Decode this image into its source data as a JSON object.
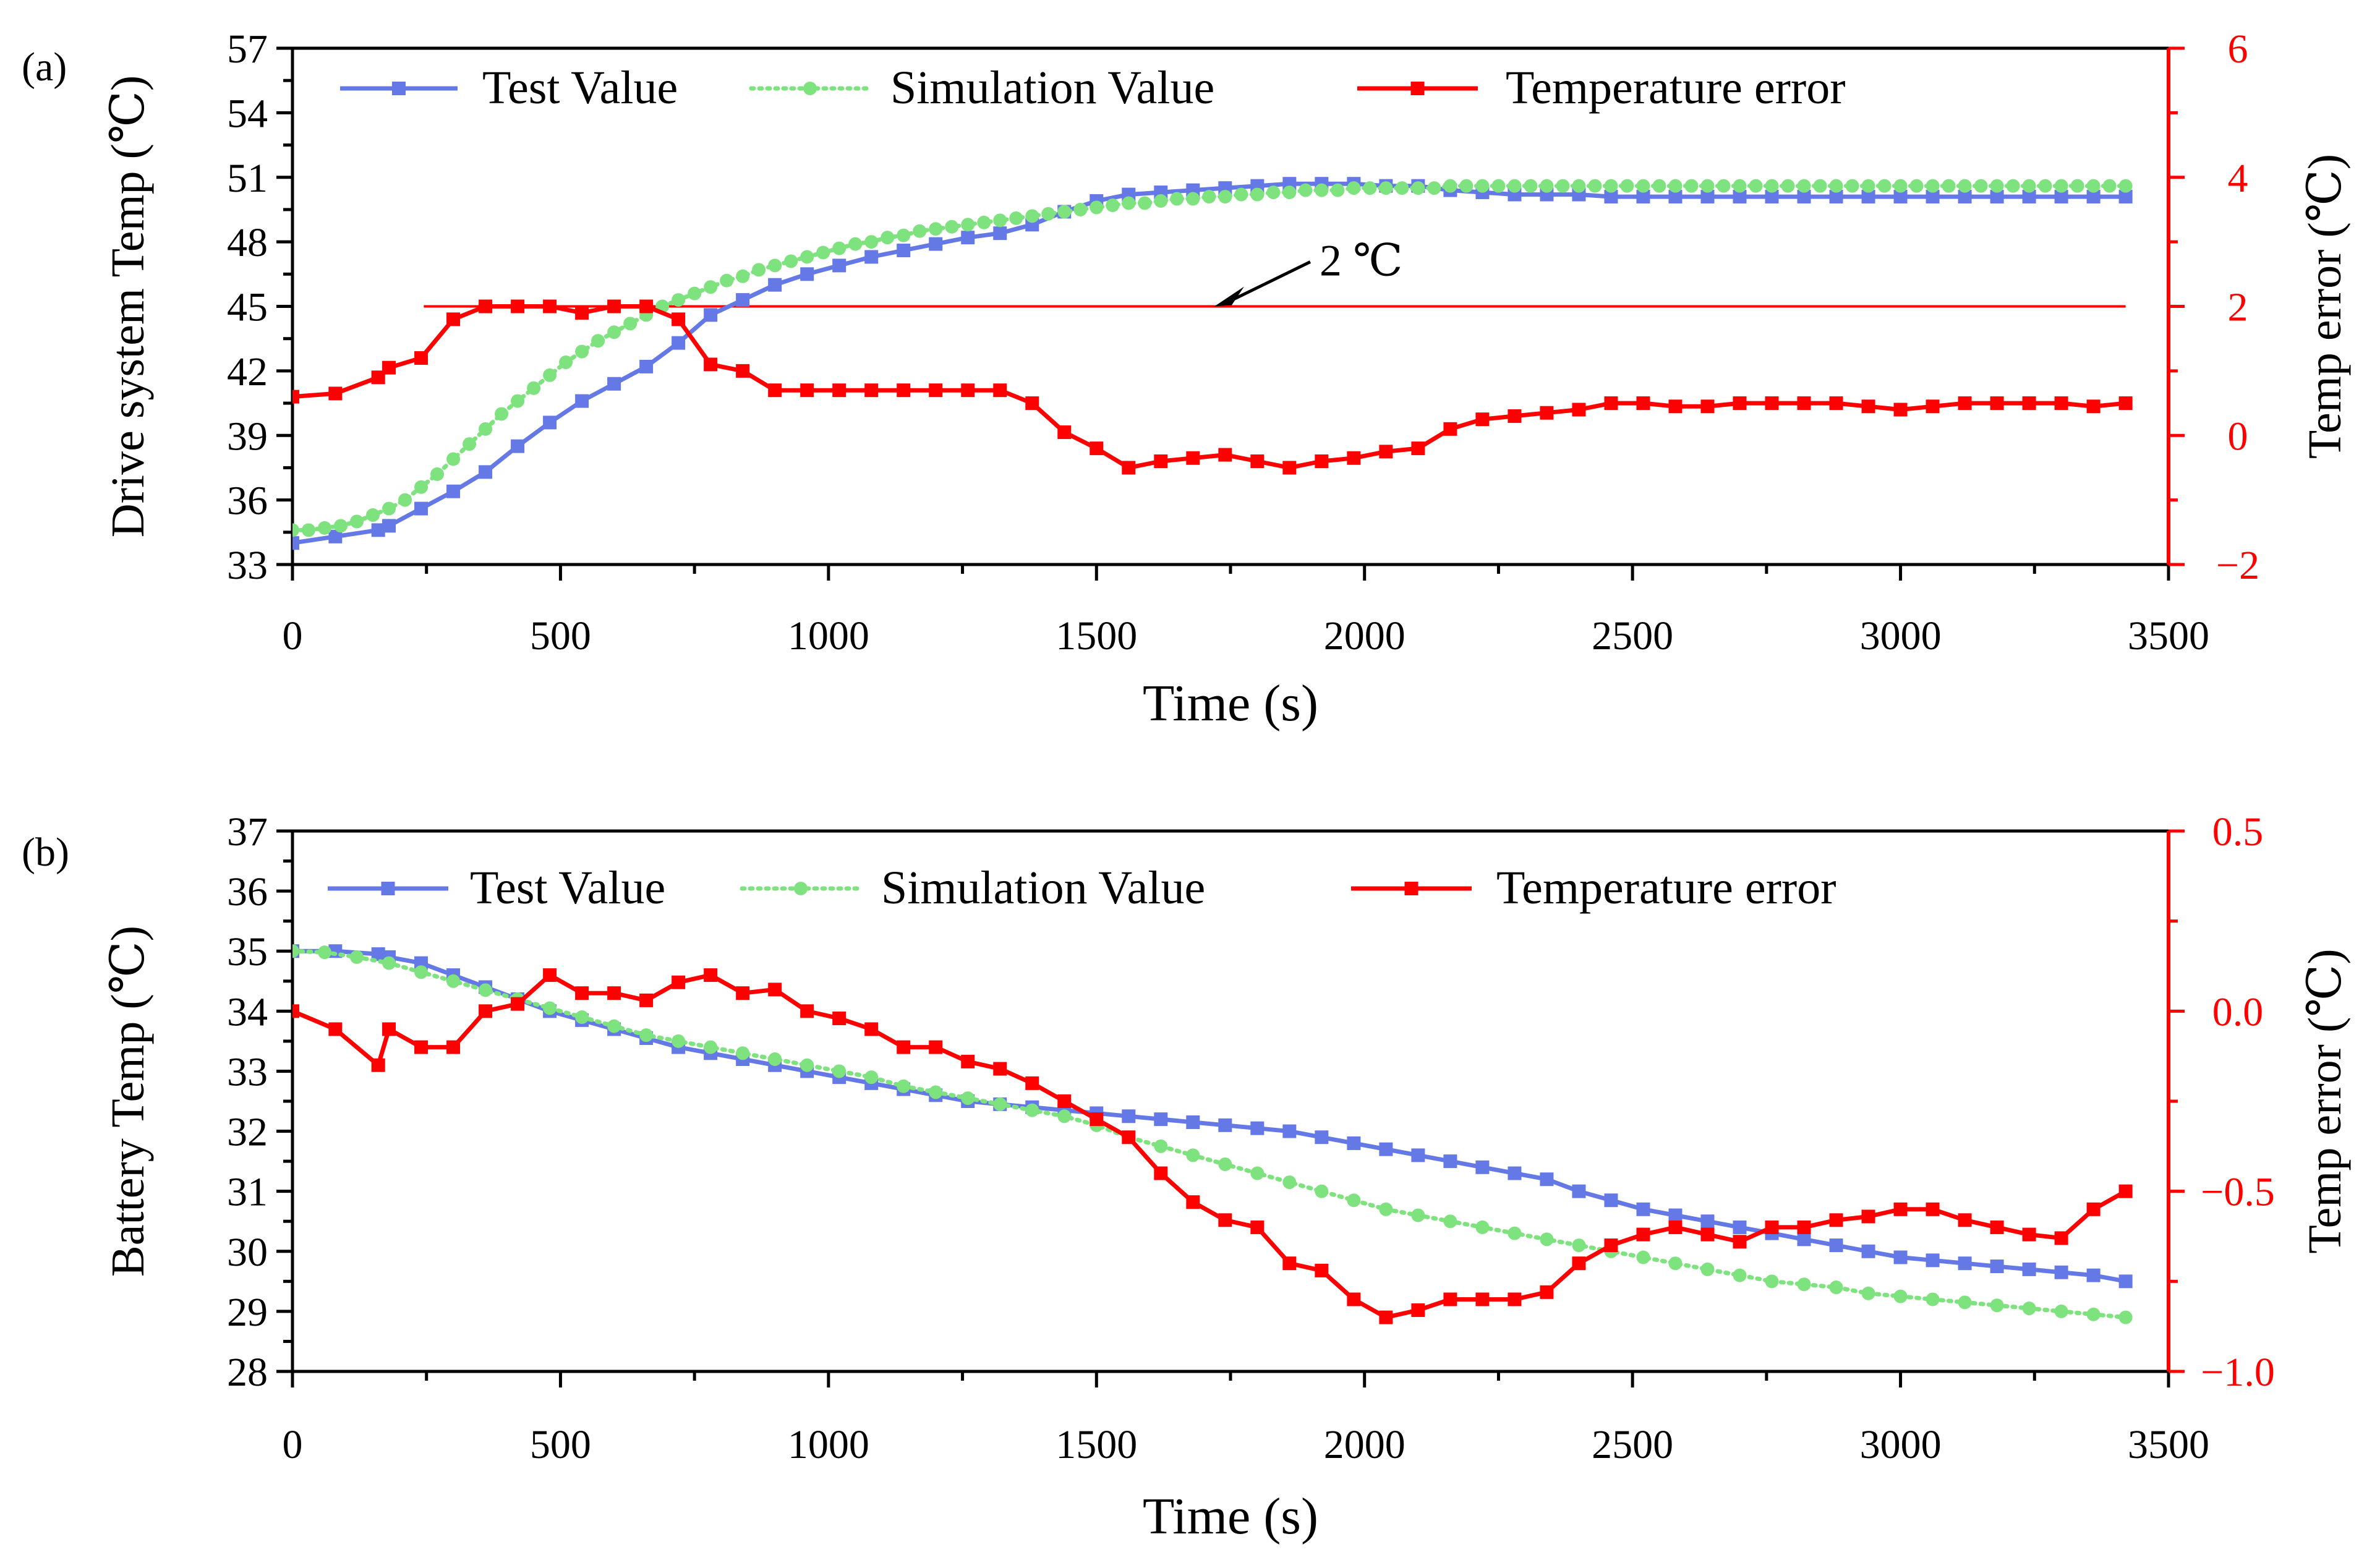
{
  "chart_data": [
    {
      "panel_label": "(a)",
      "type": "line",
      "xlabel": "Time (s)",
      "ylabel": "Drive system Temp (℃)",
      "ylabel_right": "Temp error (℃)",
      "xlim": [
        0,
        3500
      ],
      "ylim": [
        33,
        57
      ],
      "ylim_right": [
        -2,
        6
      ],
      "x_ticks": [
        0,
        500,
        1000,
        1500,
        2000,
        2500,
        3000,
        3500
      ],
      "y_ticks": [
        33,
        36,
        39,
        42,
        45,
        48,
        51,
        54,
        57
      ],
      "y_ticks_right": [
        -2,
        0,
        2,
        4,
        6
      ],
      "legend_position": "top",
      "grid": false,
      "annotation": {
        "text": "2 ℃",
        "line_value_right": 2,
        "line_x": [
          245,
          3420
        ],
        "arrow_target_x": 1720
      },
      "series": [
        {
          "name": "Test Value",
          "axis": "left",
          "color": "#6479e6",
          "style": "solid",
          "marker": "square",
          "x": [
            0,
            80,
            160,
            180,
            240,
            300,
            360,
            420,
            480,
            540,
            600,
            660,
            720,
            780,
            840,
            900,
            960,
            1020,
            1080,
            1140,
            1200,
            1260,
            1320,
            1380,
            1440,
            1500,
            1560,
            1620,
            1680,
            1740,
            1800,
            1860,
            1920,
            1980,
            2040,
            2100,
            2160,
            2220,
            2280,
            2340,
            2400,
            2460,
            2520,
            2580,
            2640,
            2700,
            2760,
            2820,
            2880,
            2940,
            3000,
            3060,
            3120,
            3180,
            3240,
            3300,
            3360,
            3420
          ],
          "y": [
            34.0,
            34.3,
            34.6,
            34.8,
            35.6,
            36.4,
            37.3,
            38.5,
            39.6,
            40.6,
            41.4,
            42.2,
            43.3,
            44.6,
            45.3,
            46.0,
            46.5,
            46.9,
            47.3,
            47.6,
            47.9,
            48.2,
            48.4,
            48.8,
            49.4,
            49.9,
            50.2,
            50.3,
            50.4,
            50.5,
            50.6,
            50.7,
            50.7,
            50.7,
            50.6,
            50.6,
            50.4,
            50.3,
            50.2,
            50.2,
            50.2,
            50.1,
            50.1,
            50.1,
            50.1,
            50.1,
            50.1,
            50.1,
            50.1,
            50.1,
            50.1,
            50.1,
            50.1,
            50.1,
            50.1,
            50.1,
            50.1,
            50.1
          ]
        },
        {
          "name": "Simulation Value",
          "axis": "left",
          "color": "#7ee27e",
          "style": "dotted",
          "marker": "circle",
          "x": [
            0,
            30,
            60,
            90,
            120,
            150,
            180,
            210,
            240,
            270,
            300,
            330,
            360,
            390,
            420,
            450,
            480,
            510,
            540,
            570,
            600,
            630,
            660,
            690,
            720,
            750,
            780,
            810,
            840,
            870,
            900,
            930,
            960,
            990,
            1020,
            1050,
            1080,
            1110,
            1140,
            1170,
            1200,
            1230,
            1260,
            1290,
            1320,
            1350,
            1380,
            1410,
            1440,
            1470,
            1500,
            1530,
            1560,
            1590,
            1620,
            1650,
            1680,
            1710,
            1740,
            1770,
            1800,
            1830,
            1860,
            1890,
            1920,
            1950,
            1980,
            2010,
            2040,
            2070,
            2100,
            2130,
            2160,
            2190,
            2220,
            2250,
            2280,
            2310,
            2340,
            2370,
            2400,
            2430,
            2460,
            2490,
            2520,
            2550,
            2580,
            2610,
            2640,
            2670,
            2700,
            2730,
            2760,
            2790,
            2820,
            2850,
            2880,
            2910,
            2940,
            2970,
            3000,
            3030,
            3060,
            3090,
            3120,
            3150,
            3180,
            3210,
            3240,
            3270,
            3300,
            3330,
            3360,
            3390,
            3420
          ],
          "y": [
            34.6,
            34.6,
            34.7,
            34.8,
            35.0,
            35.3,
            35.6,
            36.0,
            36.6,
            37.2,
            37.9,
            38.6,
            39.3,
            40.0,
            40.6,
            41.2,
            41.8,
            42.4,
            42.9,
            43.4,
            43.8,
            44.2,
            44.6,
            45.0,
            45.3,
            45.6,
            45.9,
            46.2,
            46.4,
            46.7,
            46.9,
            47.1,
            47.3,
            47.5,
            47.7,
            47.9,
            48.0,
            48.2,
            48.3,
            48.5,
            48.6,
            48.7,
            48.8,
            48.9,
            49.0,
            49.1,
            49.2,
            49.3,
            49.4,
            49.5,
            49.6,
            49.7,
            49.8,
            49.8,
            49.9,
            50.0,
            50.0,
            50.1,
            50.1,
            50.2,
            50.2,
            50.3,
            50.3,
            50.4,
            50.4,
            50.4,
            50.5,
            50.5,
            50.5,
            50.5,
            50.5,
            50.5,
            50.6,
            50.6,
            50.6,
            50.6,
            50.6,
            50.6,
            50.6,
            50.6,
            50.6,
            50.6,
            50.6,
            50.6,
            50.6,
            50.6,
            50.6,
            50.6,
            50.6,
            50.6,
            50.6,
            50.6,
            50.6,
            50.6,
            50.6,
            50.6,
            50.6,
            50.6,
            50.6,
            50.6,
            50.6,
            50.6,
            50.6,
            50.6,
            50.6,
            50.6,
            50.6,
            50.6,
            50.6,
            50.6,
            50.6,
            50.6,
            50.6,
            50.6,
            50.6
          ]
        },
        {
          "name": "Temperature error",
          "axis": "right",
          "color": "#ff0000",
          "style": "solid",
          "marker": "square",
          "x": [
            0,
            80,
            160,
            180,
            240,
            300,
            360,
            420,
            480,
            540,
            600,
            660,
            720,
            780,
            840,
            900,
            960,
            1020,
            1080,
            1140,
            1200,
            1260,
            1320,
            1380,
            1440,
            1500,
            1560,
            1620,
            1680,
            1740,
            1800,
            1860,
            1920,
            1980,
            2040,
            2100,
            2160,
            2220,
            2280,
            2340,
            2400,
            2460,
            2520,
            2580,
            2640,
            2700,
            2760,
            2820,
            2880,
            2940,
            3000,
            3060,
            3120,
            3180,
            3240,
            3300,
            3360,
            3420
          ],
          "y": [
            0.6,
            0.65,
            0.9,
            1.05,
            1.2,
            1.8,
            2.0,
            2.0,
            2.0,
            1.9,
            2.0,
            2.0,
            1.8,
            1.1,
            1.0,
            0.7,
            0.7,
            0.7,
            0.7,
            0.7,
            0.7,
            0.7,
            0.7,
            0.5,
            0.05,
            -0.2,
            -0.5,
            -0.4,
            -0.35,
            -0.3,
            -0.4,
            -0.5,
            -0.4,
            -0.35,
            -0.25,
            -0.2,
            0.1,
            0.25,
            0.3,
            0.35,
            0.4,
            0.5,
            0.5,
            0.45,
            0.45,
            0.5,
            0.5,
            0.5,
            0.5,
            0.45,
            0.4,
            0.45,
            0.5,
            0.5,
            0.5,
            0.5,
            0.45,
            0.5
          ]
        }
      ]
    },
    {
      "panel_label": "(b)",
      "type": "line",
      "xlabel": "Time (s)",
      "ylabel": "Battery Temp (℃)",
      "ylabel_right": "Temp error (℃)",
      "xlim": [
        0,
        3500
      ],
      "ylim": [
        28,
        37
      ],
      "ylim_right": [
        -1.0,
        0.5
      ],
      "x_ticks": [
        0,
        500,
        1000,
        1500,
        2000,
        2500,
        3000,
        3500
      ],
      "y_ticks": [
        28,
        29,
        30,
        31,
        32,
        33,
        34,
        35,
        36,
        37
      ],
      "y_ticks_right": [
        "-1.0",
        "-0.5",
        "0.0",
        "0.5"
      ],
      "y_ticks_right_values": [
        -1.0,
        -0.5,
        0.0,
        0.5
      ],
      "legend_position": "top",
      "grid": false,
      "series": [
        {
          "name": "Test Value",
          "axis": "left",
          "color": "#6479e6",
          "style": "solid",
          "marker": "square",
          "x": [
            0,
            80,
            160,
            180,
            240,
            300,
            360,
            420,
            480,
            540,
            600,
            660,
            720,
            780,
            840,
            900,
            960,
            1020,
            1080,
            1140,
            1200,
            1260,
            1320,
            1380,
            1440,
            1500,
            1560,
            1620,
            1680,
            1740,
            1800,
            1860,
            1920,
            1980,
            2040,
            2100,
            2160,
            2220,
            2280,
            2340,
            2400,
            2460,
            2520,
            2580,
            2640,
            2700,
            2760,
            2820,
            2880,
            2940,
            3000,
            3060,
            3120,
            3180,
            3240,
            3300,
            3360,
            3420
          ],
          "y": [
            35.0,
            35.0,
            34.95,
            34.9,
            34.8,
            34.6,
            34.4,
            34.2,
            34.0,
            33.85,
            33.7,
            33.55,
            33.4,
            33.3,
            33.2,
            33.1,
            33.0,
            32.9,
            32.8,
            32.7,
            32.6,
            32.5,
            32.45,
            32.4,
            32.35,
            32.3,
            32.25,
            32.2,
            32.15,
            32.1,
            32.05,
            32.0,
            31.9,
            31.8,
            31.7,
            31.6,
            31.5,
            31.4,
            31.3,
            31.2,
            31.0,
            30.85,
            30.7,
            30.6,
            30.5,
            30.4,
            30.3,
            30.2,
            30.1,
            30.0,
            29.9,
            29.85,
            29.8,
            29.75,
            29.7,
            29.65,
            29.6,
            29.5
          ]
        },
        {
          "name": "Simulation Value",
          "axis": "left",
          "color": "#7ee27e",
          "style": "dotted",
          "marker": "circle",
          "x": [
            0,
            60,
            120,
            180,
            240,
            300,
            360,
            420,
            480,
            540,
            600,
            660,
            720,
            780,
            840,
            900,
            960,
            1020,
            1080,
            1140,
            1200,
            1260,
            1320,
            1380,
            1440,
            1500,
            1560,
            1620,
            1680,
            1740,
            1800,
            1860,
            1920,
            1980,
            2040,
            2100,
            2160,
            2220,
            2280,
            2340,
            2400,
            2460,
            2520,
            2580,
            2640,
            2700,
            2760,
            2820,
            2880,
            2940,
            3000,
            3060,
            3120,
            3180,
            3240,
            3300,
            3360,
            3420
          ],
          "y": [
            35.0,
            34.98,
            34.9,
            34.8,
            34.65,
            34.5,
            34.35,
            34.2,
            34.05,
            33.9,
            33.75,
            33.6,
            33.5,
            33.4,
            33.3,
            33.2,
            33.1,
            33.0,
            32.9,
            32.75,
            32.65,
            32.55,
            32.45,
            32.35,
            32.25,
            32.1,
            31.9,
            31.75,
            31.6,
            31.45,
            31.3,
            31.15,
            31.0,
            30.85,
            30.7,
            30.6,
            30.5,
            30.4,
            30.3,
            30.2,
            30.1,
            30.0,
            29.9,
            29.8,
            29.7,
            29.6,
            29.5,
            29.45,
            29.4,
            29.3,
            29.25,
            29.2,
            29.15,
            29.1,
            29.05,
            29.0,
            28.95,
            28.9
          ]
        },
        {
          "name": "Temperature error",
          "axis": "right",
          "color": "#ff0000",
          "style": "solid",
          "marker": "square",
          "x": [
            0,
            80,
            160,
            180,
            240,
            300,
            360,
            420,
            480,
            540,
            600,
            660,
            720,
            780,
            840,
            900,
            960,
            1020,
            1080,
            1140,
            1200,
            1260,
            1320,
            1380,
            1440,
            1500,
            1560,
            1620,
            1680,
            1740,
            1800,
            1860,
            1920,
            1980,
            2040,
            2100,
            2160,
            2220,
            2280,
            2340,
            2400,
            2460,
            2520,
            2580,
            2640,
            2700,
            2760,
            2820,
            2880,
            2940,
            3000,
            3060,
            3120,
            3180,
            3240,
            3300,
            3360,
            3420
          ],
          "y": [
            0.0,
            -0.05,
            -0.15,
            -0.05,
            -0.1,
            -0.1,
            0.0,
            0.02,
            0.1,
            0.05,
            0.05,
            0.03,
            0.08,
            0.1,
            0.05,
            0.06,
            0.0,
            -0.02,
            -0.05,
            -0.1,
            -0.1,
            -0.14,
            -0.16,
            -0.2,
            -0.25,
            -0.3,
            -0.35,
            -0.45,
            -0.53,
            -0.58,
            -0.6,
            -0.7,
            -0.72,
            -0.8,
            -0.85,
            -0.83,
            -0.8,
            -0.8,
            -0.8,
            -0.78,
            -0.7,
            -0.65,
            -0.62,
            -0.6,
            -0.62,
            -0.64,
            -0.6,
            -0.6,
            -0.58,
            -0.57,
            -0.55,
            -0.55,
            -0.58,
            -0.6,
            -0.62,
            -0.63,
            -0.55,
            -0.5
          ]
        }
      ]
    }
  ]
}
